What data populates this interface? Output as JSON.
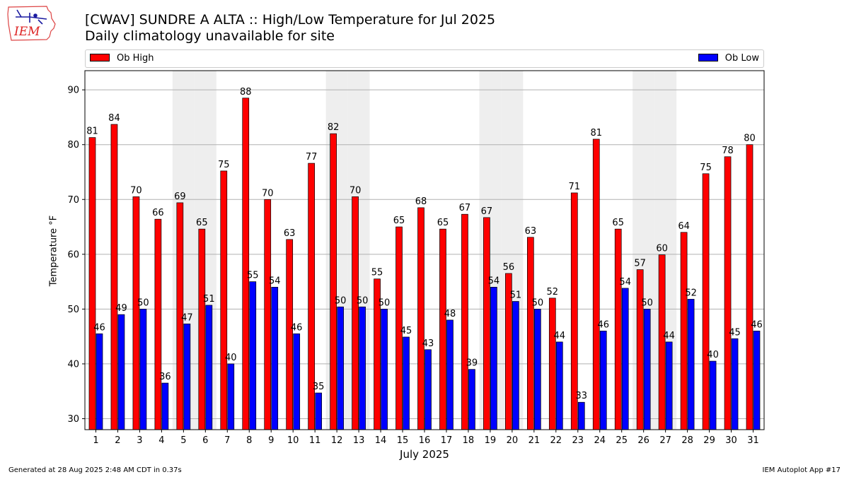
{
  "header": {
    "title_line1": "[CWAV] SUNDRE A  ALTA :: High/Low Temperature for Jul 2025",
    "title_line2": "Daily climatology unavailable for site",
    "logo_text": "IEM"
  },
  "footer": {
    "left": "Generated at 28 Aug 2025 2:48 AM CDT in 0.37s",
    "right": "IEM Autoplot App #17"
  },
  "colors": {
    "high": "#ff0000",
    "low": "#0000ff",
    "weekend_shade": "#eeeeee",
    "grid": "#b0b0b0"
  },
  "chart_data": {
    "type": "bar",
    "xlabel": "July 2025",
    "ylabel": "Temperature °F",
    "ylim": [
      28,
      93.5
    ],
    "yticks": [
      30,
      40,
      50,
      60,
      70,
      80,
      90
    ],
    "grid": "horizontal",
    "legend_placement": "top, above plot",
    "categories": [
      "1",
      "2",
      "3",
      "4",
      "5",
      "6",
      "7",
      "8",
      "9",
      "10",
      "11",
      "12",
      "13",
      "14",
      "15",
      "16",
      "17",
      "18",
      "19",
      "20",
      "21",
      "22",
      "23",
      "24",
      "25",
      "26",
      "27",
      "28",
      "29",
      "30",
      "31"
    ],
    "shaded_days": [
      5,
      6,
      12,
      13,
      19,
      20,
      26,
      27
    ],
    "series": [
      {
        "name": "Ob High",
        "values": [
          81.3,
          83.7,
          70.5,
          66.4,
          69.4,
          64.6,
          75.2,
          88.5,
          70.0,
          62.7,
          76.6,
          82.0,
          70.5,
          55.5,
          65.0,
          68.5,
          64.6,
          67.3,
          66.7,
          56.5,
          63.1,
          52.0,
          71.2,
          81.0,
          64.6,
          57.2,
          59.9,
          64.0,
          74.7,
          77.8,
          80.0
        ],
        "labels": [
          "81",
          "84",
          "70",
          "66",
          "69",
          "65",
          "75",
          "88",
          "70",
          "63",
          "77",
          "82",
          "70",
          "55",
          "65",
          "68",
          "65",
          "67",
          "67",
          "56",
          "63",
          "52",
          "71",
          "81",
          "65",
          "57",
          "60",
          "64",
          "75",
          "78",
          "80"
        ]
      },
      {
        "name": "Ob Low",
        "values": [
          45.5,
          49.0,
          50.0,
          36.5,
          47.3,
          50.7,
          40.0,
          55.0,
          54.0,
          45.5,
          34.7,
          50.4,
          50.4,
          50.0,
          44.9,
          42.6,
          48.0,
          39.0,
          54.0,
          51.4,
          50.0,
          44.0,
          33.0,
          46.0,
          53.8,
          50.0,
          44.0,
          51.8,
          40.5,
          44.6,
          46.0
        ],
        "labels": [
          "46",
          "49",
          "50",
          "36",
          "47",
          "51",
          "40",
          "55",
          "54",
          "46",
          "35",
          "50",
          "50",
          "50",
          "45",
          "43",
          "48",
          "39",
          "54",
          "51",
          "50",
          "44",
          "33",
          "46",
          "54",
          "50",
          "44",
          "52",
          "40",
          "45",
          "46"
        ]
      }
    ]
  }
}
